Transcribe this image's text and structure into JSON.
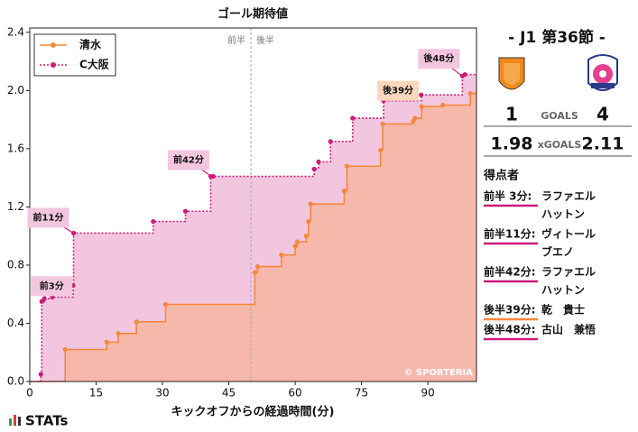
{
  "chart_data": {
    "type": "step",
    "title": "ゴール期待値",
    "x_label": "キックオフからの経過時間(分)",
    "xlim": [
      0,
      101
    ],
    "ylim": [
      0,
      2.43
    ],
    "xticks": [
      0,
      15,
      30,
      45,
      60,
      75,
      90
    ],
    "yticks": [
      {
        "value": 0,
        "label": "0.0"
      },
      0.4,
      0.8,
      1.2,
      1.6,
      {
        "value": 2,
        "label": "2.0"
      },
      2.4
    ],
    "legend": "upper left",
    "divider": {
      "x": 50,
      "labels": [
        "前半",
        "後半"
      ]
    },
    "watermark": "© SPORTERIA",
    "series": [
      {
        "name": "清水",
        "color": "#f5883a",
        "fill": "#f6b8aa",
        "dash": false,
        "x": [
          8.0,
          17.4,
          20.0,
          24.1,
          30.7,
          50.9,
          51.5,
          56.9,
          60.0,
          60.5,
          62.5,
          63.0,
          63.5,
          71.1,
          71.7,
          79.3,
          79.8,
          86.7,
          87.1,
          88.6,
          93.4,
          99.6
        ],
        "values": [
          0.22,
          0.27,
          0.33,
          0.41,
          0.53,
          0.75,
          0.79,
          0.87,
          0.93,
          0.96,
          1.0,
          1.1,
          1.22,
          1.31,
          1.48,
          1.59,
          1.77,
          1.79,
          1.81,
          1.89,
          1.9,
          1.98
        ]
      },
      {
        "name": "C大阪",
        "color": "#cc1a7a",
        "fill": "#f3c6df",
        "dash": true,
        "x": [
          2.5,
          2.7,
          3.3,
          5.1,
          9.8,
          9.9,
          27.9,
          35.2,
          40.9,
          41.5,
          64.3,
          65.3,
          68.0,
          73.0,
          80.0,
          88.5,
          97.8,
          98.4
        ],
        "values": [
          0.05,
          0.55,
          0.57,
          0.58,
          0.66,
          1.02,
          1.1,
          1.17,
          1.41,
          1.41,
          1.46,
          1.51,
          1.65,
          1.81,
          1.93,
          1.97,
          2.1,
          2.11
        ]
      }
    ],
    "annotations": [
      {
        "text": "前3分",
        "x": 2.7,
        "y": 0.55,
        "color": "#f3c6df"
      },
      {
        "text": "前11分",
        "x": 9.9,
        "y": 1.02,
        "color": "#f3c6df"
      },
      {
        "text": "前42分",
        "x": 41.0,
        "y": 1.41,
        "color": "#f3c6df"
      },
      {
        "text": "後39分",
        "x": 80.0,
        "y": 1.93,
        "color": "#fcd6bd"
      },
      {
        "text": "後48分",
        "x": 97.8,
        "y": 2.1,
        "color": "#f3c6df"
      }
    ]
  },
  "panel": {
    "match": "- J1 第36節 -",
    "home_goals": "1",
    "away_goals": "4",
    "goals_label": "GOALS",
    "home_xg": "1.98",
    "away_xg": "2.11",
    "xg_label": "xGOALS",
    "scorers_title": "得点者",
    "scorers": [
      {
        "time": "前半 3分:",
        "name": [
          "ラファエル",
          "ハットン"
        ],
        "color": "#cc1a7a"
      },
      {
        "time": "前半11分:",
        "name": [
          "ヴィトール",
          "ブエノ"
        ],
        "color": "#cc1a7a"
      },
      {
        "time": "前半42分:",
        "name": [
          "ラファエル",
          "ハットン"
        ],
        "color": "#cc1a7a"
      },
      {
        "time": "後半39分:",
        "name": [
          "乾　貴士"
        ],
        "color": "#f5883a"
      },
      {
        "time": "後半48分:",
        "name": [
          "古山　兼悟"
        ],
        "color": "#cc1a7a"
      }
    ]
  },
  "logo": "STATs"
}
